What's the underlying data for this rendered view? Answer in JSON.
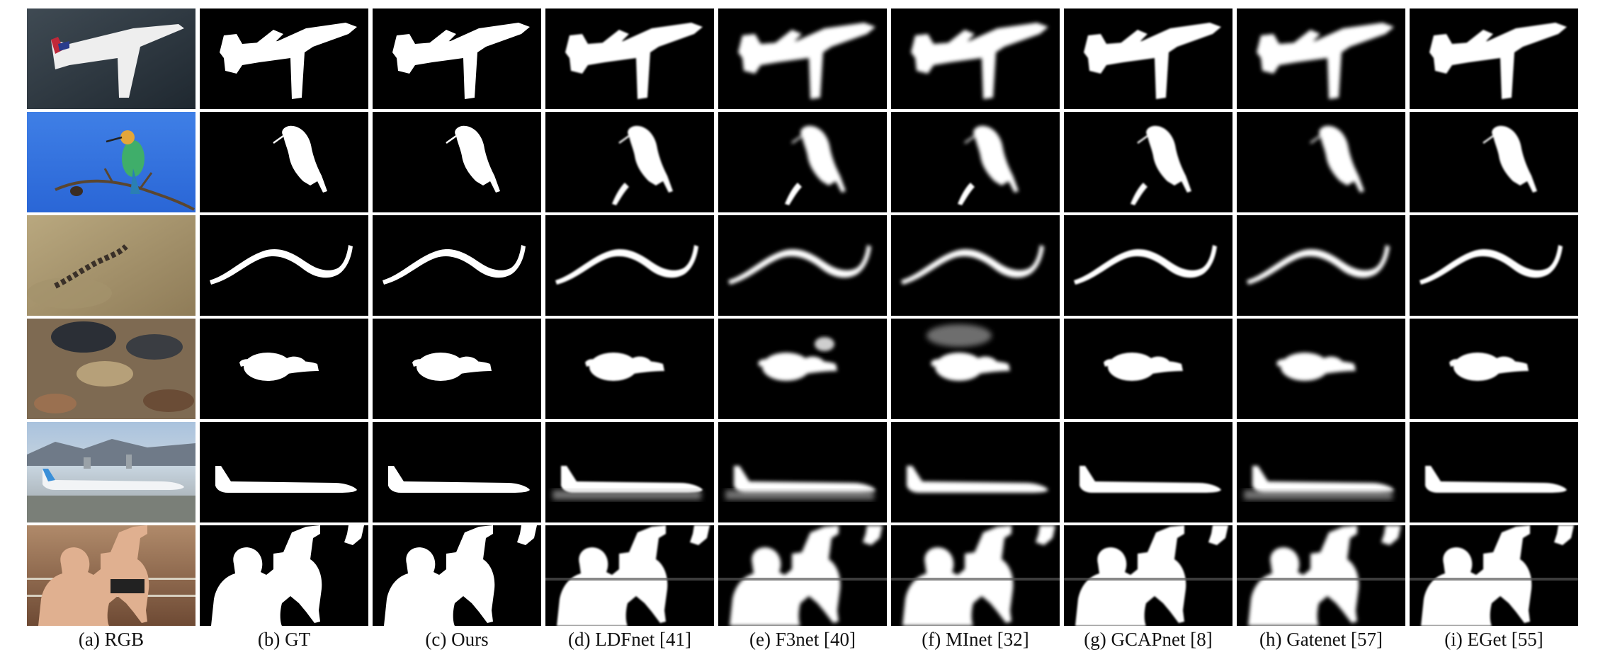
{
  "figure": {
    "columns": [
      {
        "id": "rgb",
        "label": "(a)  RGB"
      },
      {
        "id": "gt",
        "label": "(b)  GT"
      },
      {
        "id": "ours",
        "label": "(c)  Ours"
      },
      {
        "id": "ldfnet",
        "label": "(d)  LDFnet [41]"
      },
      {
        "id": "f3net",
        "label": "(e)  F3net [40]"
      },
      {
        "id": "minet",
        "label": "(f)  MInet [32]"
      },
      {
        "id": "gcapnet",
        "label": "(g)  GCAPnet [8]"
      },
      {
        "id": "gatenet",
        "label": "(h)  Gatenet [57]"
      },
      {
        "id": "eget",
        "label": "(i)  EGet [55]"
      }
    ],
    "rows": [
      {
        "id": "airplane-overhead",
        "scene": "airplane-over-water"
      },
      {
        "id": "bird",
        "scene": "bee-eater-on-branch"
      },
      {
        "id": "snake-sand",
        "scene": "snake-on-sand"
      },
      {
        "id": "snake-rocks",
        "scene": "coiled-snake-on-rocks"
      },
      {
        "id": "airliner-tarmac",
        "scene": "airliner-on-runway"
      },
      {
        "id": "wrestlers",
        "scene": "wrestlers-in-ring"
      }
    ],
    "colors": {
      "mask_foreground": "#ffffff",
      "mask_background": "#000000",
      "page_background": "#ffffff"
    }
  }
}
